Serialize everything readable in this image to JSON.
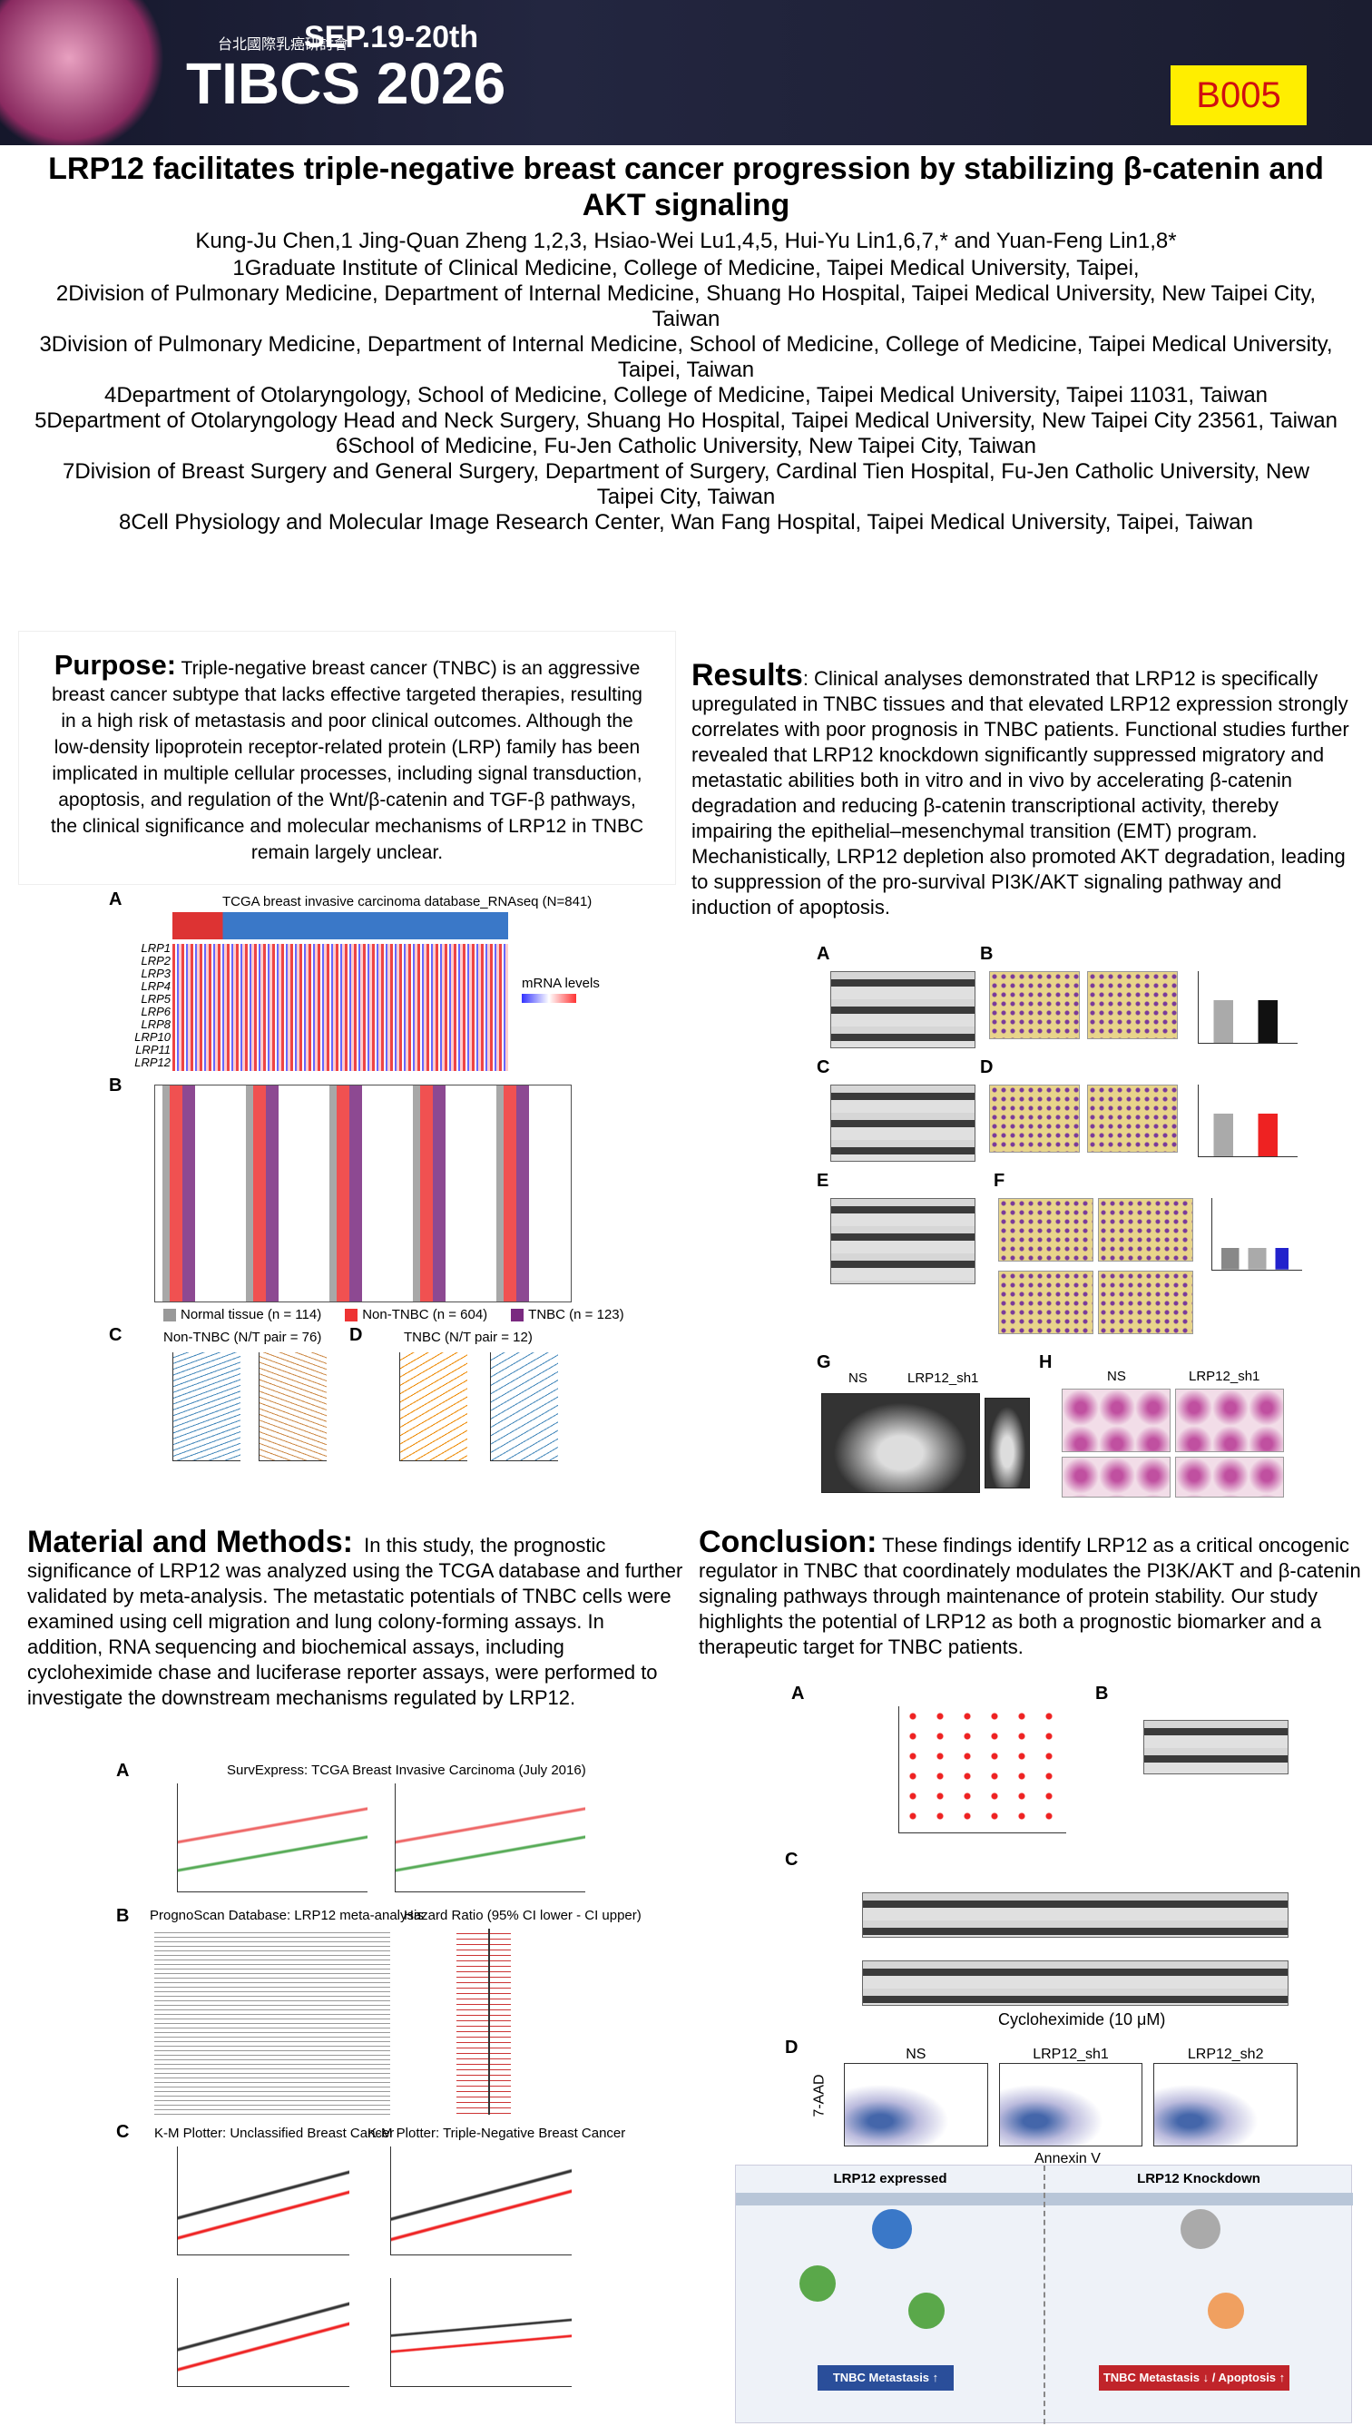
{
  "header": {
    "badge": "TIBCS 2026",
    "org": "台北國際乳癌研討會",
    "dates": "SEP.19-20th",
    "code": "B005"
  },
  "title": "LRP12 facilitates triple-negative breast cancer progression by stabilizing β-catenin and AKT signaling",
  "authors": "Kung-Ju Chen,1 Jing-Quan Zheng 1,2,3, Hsiao-Wei Lu1,4,5, Hui-Yu Lin1,6,7,* and Yuan-Feng Lin1,8*",
  "affiliations": [
    "1Graduate Institute of Clinical Medicine, College of Medicine, Taipei Medical University, Taipei,",
    "2Division of Pulmonary Medicine, Department of Internal Medicine, Shuang Ho Hospital, Taipei Medical University, New Taipei City, Taiwan",
    "3Division of Pulmonary Medicine, Department of Internal Medicine, School of Medicine, College of Medicine, Taipei Medical University, Taipei, Taiwan",
    "4Department of Otolaryngology, School of Medicine, College of Medicine, Taipei Medical University, Taipei 11031, Taiwan",
    "5Department of Otolaryngology Head and Neck Surgery, Shuang Ho Hospital, Taipei Medical University, New Taipei City 23561, Taiwan",
    "6School of Medicine, Fu-Jen Catholic University, New Taipei City, Taiwan",
    "7Division of Breast Surgery and General Surgery, Department of Surgery, Cardinal Tien Hospital, Fu-Jen Catholic University, New Taipei City, Taiwan",
    "8Cell Physiology and Molecular Image Research Center, Wan Fang Hospital, Taipei Medical University, Taipei, Taiwan"
  ],
  "purpose": {
    "heading": "Purpose:",
    "body": "Triple-negative breast cancer (TNBC) is an aggressive breast cancer subtype that lacks effective targeted therapies, resulting in a high risk of metastasis and poor clinical outcomes. Although the low-density lipoprotein receptor-related protein (LRP) family has been implicated in multiple cellular processes, including signal transduction, apoptosis, and regulation of the Wnt/β-catenin and TGF-β pathways, the clinical significance and molecular mechanisms of LRP12 in TNBC remain largely unclear."
  },
  "results": {
    "heading": "Results",
    "body": ": Clinical analyses demonstrated that LRP12 is specifically upregulated in TNBC tissues and that elevated LRP12 expression strongly correlates with poor prognosis in TNBC patients. Functional studies further revealed that LRP12 knockdown significantly suppressed migratory and metastatic abilities both in vitro and in vivo by accelerating β-catenin degradation and reducing β-catenin transcriptional activity, thereby impairing the epithelial–mesenchymal transition (EMT) program. Mechanistically, LRP12 depletion also promoted AKT degradation, leading to suppression of the pro-survival PI3K/AKT signaling pathway and induction of apoptosis."
  },
  "methods": {
    "heading": "Material and Methods:",
    "body": "In this study, the prognostic significance of LRP12 was analyzed using the TCGA database and further validated by meta-analysis. The metastatic potentials of TNBC cells were examined using cell migration and lung colony-forming assays. In addition, RNA sequencing and biochemical assays, including cycloheximide chase and luciferase reporter assays, were performed to investigate the downstream mechanisms regulated by LRP12."
  },
  "conclusion": {
    "heading": "Conclusion:",
    "body": "These findings identify LRP12 as a critical oncogenic regulator in TNBC that coordinately modulates the PI3K/AKT and β-catenin signaling pathways through maintenance of protein stability. Our study highlights the potential of LRP12 as both a prognostic biomarker and a therapeutic target for TNBC patients."
  },
  "fig_clinical": {
    "a_label": "A",
    "a_caption": "TCGA breast invasive carcinoma database_RNAseq (N=841)",
    "a_legend": "mRNA levels",
    "a_rows": [
      "LRP1",
      "LRP2",
      "LRP3",
      "LRP4",
      "LRP5",
      "LRP6",
      "LRP8",
      "LRP10",
      "LRP11",
      "LRP12"
    ],
    "b_label": "B",
    "b_legend": [
      "Normal tissue (n = 114)",
      "Non-TNBC (n = 604)",
      "TNBC (n = 123)"
    ],
    "c_label": "C",
    "c_caption": "Non-TNBC (N/T pair = 76)",
    "d_label": "D",
    "d_caption": "TNBC (N/T pair = 12)"
  },
  "fig_results": {
    "labels": [
      "A",
      "B",
      "C",
      "D",
      "E",
      "F",
      "G",
      "H"
    ],
    "g_ns": "NS",
    "g_sh": "LRP12_sh1",
    "h_ns": "NS",
    "h_sh": "LRP12_sh1"
  },
  "fig_methods": {
    "a_label": "A",
    "a_caption": "SurvExpress: TCGA Breast Invasive Carcinoma (July 2016)",
    "b_label": "B",
    "b_caption": "PrognoScan Database: LRP12 meta-analysis",
    "b_caption2": "Hazard Ratio (95% CI lower - CI upper)",
    "c_label": "C",
    "c_caption1": "K-M Plotter: Unclassified Breast Cancer",
    "c_caption2": "K-M Plotter: Triple-Negative Breast Cancer"
  },
  "fig_conclusion": {
    "a_label": "A",
    "b_label": "B",
    "c_label": "C",
    "c_caption": "Cycloheximide (10 μM)",
    "d_label": "D",
    "d_xlabel": "Annexin V",
    "d_ylabel": "7-AAD",
    "d_titles": [
      "NS",
      "LRP12_sh1",
      "LRP12_sh2"
    ],
    "s_left": "LRP12 expressed",
    "s_right": "LRP12 Knockdown",
    "s_left_out": "TNBC Metastasis ↑",
    "s_right_out": "TNBC Metastasis ↓ / Apoptosis ↑"
  }
}
